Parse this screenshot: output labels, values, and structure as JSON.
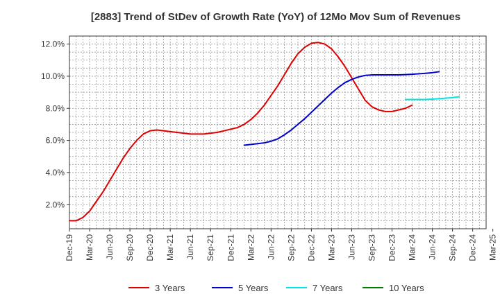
{
  "chart_data": {
    "type": "line",
    "title": "[2883]  Trend of StDev of Growth Rate (YoY) of 12Mo Mov Sum of Revenues",
    "xlabel": "",
    "ylabel": "",
    "x_tick_labels": [
      "Dec-19",
      "Mar-20",
      "Jun-20",
      "Sep-20",
      "Dec-20",
      "Mar-21",
      "Jun-21",
      "Sep-21",
      "Dec-21",
      "Mar-22",
      "Jun-22",
      "Sep-22",
      "Dec-22",
      "Mar-23",
      "Jun-23",
      "Sep-23",
      "Dec-23",
      "Mar-24",
      "Jun-24",
      "Sep-24",
      "Dec-24",
      "Mar-25"
    ],
    "y_ticks": [
      2.0,
      4.0,
      6.0,
      8.0,
      10.0,
      12.0
    ],
    "y_tick_labels": [
      "2.0%",
      "4.0%",
      "6.0%",
      "8.0%",
      "10.0%",
      "12.0%"
    ],
    "ylim": [
      0.5,
      12.5
    ],
    "grid": true,
    "legend_position": "bottom",
    "series": [
      {
        "name": "3 Years",
        "color": "#dd0000",
        "start_index": 1,
        "values": [
          1.0,
          1.0,
          1.2,
          1.6,
          2.2,
          2.8,
          3.5,
          4.2,
          4.9,
          5.5,
          6.0,
          6.4,
          6.6,
          6.65,
          6.6,
          6.55,
          6.5,
          6.45,
          6.4,
          6.4,
          6.4,
          6.45,
          6.5,
          6.6,
          6.7,
          6.8,
          7.0,
          7.3,
          7.7,
          8.2,
          8.8,
          9.4,
          10.1,
          10.8,
          11.4,
          11.8,
          12.05,
          12.1,
          12.0,
          11.7,
          11.2,
          10.6,
          9.9,
          9.2,
          8.5,
          8.1,
          7.9,
          7.8,
          7.8,
          7.9,
          8.0,
          8.2
        ]
      },
      {
        "name": "5 Years",
        "color": "#0000cc",
        "start_index": 27,
        "values": [
          5.7,
          5.75,
          5.8,
          5.85,
          5.95,
          6.1,
          6.35,
          6.65,
          7.0,
          7.35,
          7.75,
          8.15,
          8.55,
          8.95,
          9.3,
          9.6,
          9.8,
          9.95,
          10.05,
          10.08,
          10.08,
          10.08,
          10.08,
          10.08,
          10.1,
          10.12,
          10.15,
          10.18,
          10.22,
          10.28
        ]
      },
      {
        "name": "7 Years",
        "color": "#00e5e5",
        "start_index": 51,
        "values": [
          8.55,
          8.55,
          8.55,
          8.55,
          8.57,
          8.6,
          8.63,
          8.67,
          8.72
        ]
      },
      {
        "name": "10 Years",
        "color": "#008000",
        "start_index": 0,
        "values": []
      }
    ]
  }
}
